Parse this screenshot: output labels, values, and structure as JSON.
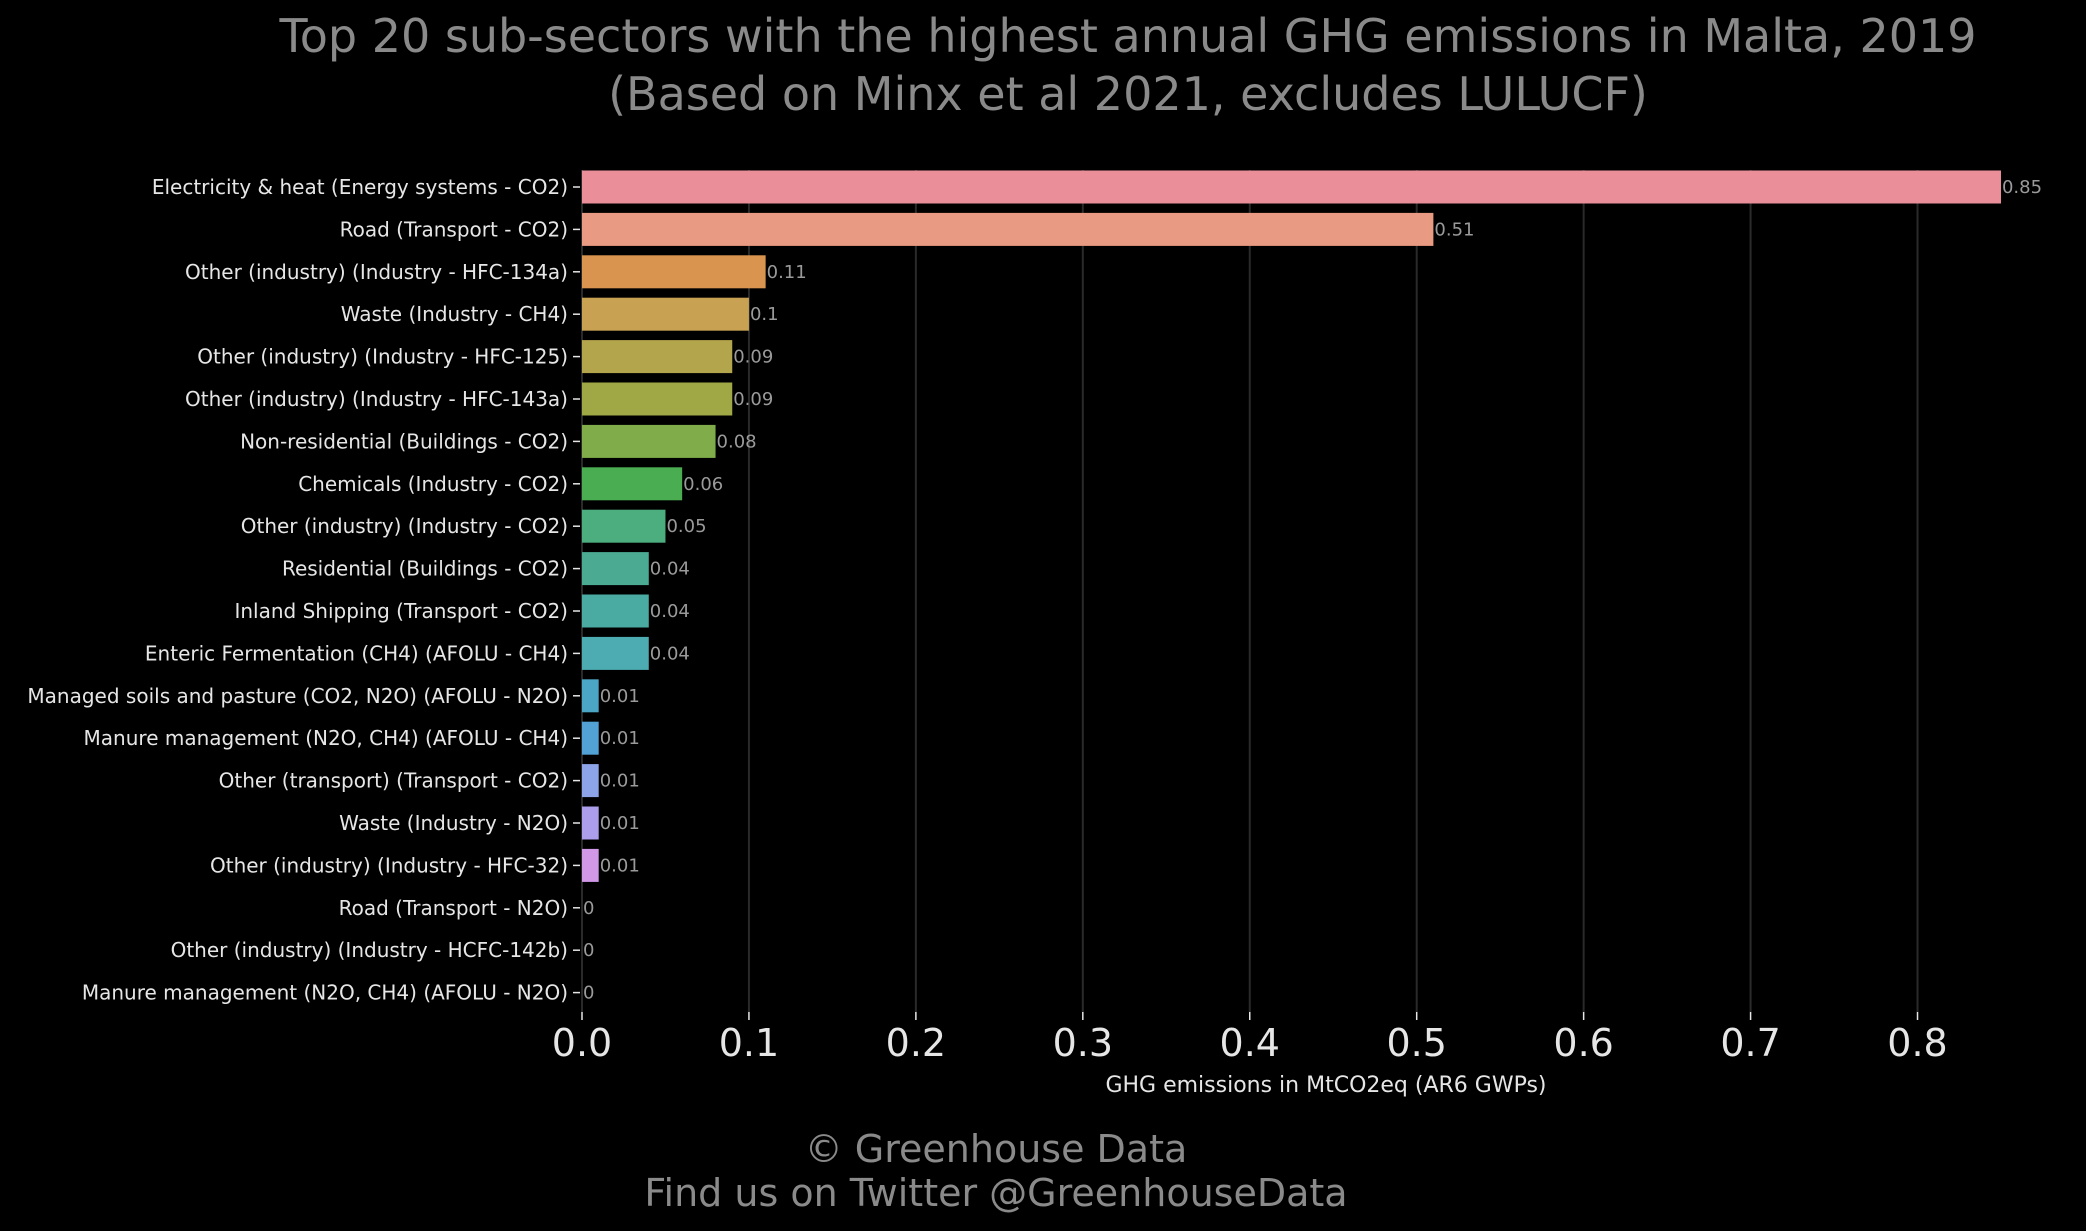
{
  "chart_data": {
    "type": "bar",
    "orientation": "horizontal",
    "title": "Top 20 sub-sectors with the highest annual GHG emissions in Malta, 2019",
    "subtitle": "(Based on Minx et al 2021, excludes LULUCF)",
    "xlabel": "GHG emissions in MtCO2eq (AR6 GWPs)",
    "ylabel": "",
    "xlim": [
      0,
      0.87
    ],
    "xticks": [
      0.0,
      0.1,
      0.2,
      0.3,
      0.4,
      0.5,
      0.6,
      0.7,
      0.8
    ],
    "xtick_labels": [
      "0.0",
      "0.1",
      "0.2",
      "0.3",
      "0.4",
      "0.5",
      "0.6",
      "0.7",
      "0.8"
    ],
    "grid": "vertical",
    "categories": [
      "Electricity & heat (Energy systems - CO2)",
      "Road (Transport - CO2)",
      "Other (industry) (Industry - HFC-134a)",
      "Waste (Industry - CH4)",
      "Other (industry) (Industry - HFC-125)",
      "Other (industry) (Industry - HFC-143a)",
      "Non-residential (Buildings - CO2)",
      "Chemicals (Industry - CO2)",
      "Other (industry) (Industry - CO2)",
      "Residential (Buildings - CO2)",
      "Inland Shipping (Transport - CO2)",
      "Enteric Fermentation (CH4) (AFOLU - CH4)",
      "Managed soils and pasture (CO2, N2O) (AFOLU - N2O)",
      "Manure management (N2O, CH4) (AFOLU - CH4)",
      "Other (transport) (Transport - CO2)",
      "Waste (Industry - N2O)",
      "Other (industry) (Industry - HFC-32)",
      "Road (Transport - N2O)",
      "Other (industry) (Industry - HCFC-142b)",
      "Manure management (N2O, CH4) (AFOLU - N2O)"
    ],
    "values": [
      0.85,
      0.51,
      0.11,
      0.1,
      0.09,
      0.09,
      0.08,
      0.06,
      0.05,
      0.04,
      0.04,
      0.04,
      0.01,
      0.01,
      0.01,
      0.01,
      0.01,
      0,
      0,
      0
    ],
    "value_labels": [
      "0.85",
      "0.51",
      "0.11",
      "0.1",
      "0.09",
      "0.09",
      "0.08",
      "0.06",
      "0.05",
      "0.04",
      "0.04",
      "0.04",
      "0.01",
      "0.01",
      "0.01",
      "0.01",
      "0.01",
      "0",
      "0",
      "0"
    ],
    "colors": [
      "#ea8f9a",
      "#e99a82",
      "#d99550",
      "#c8a152",
      "#b3a54c",
      "#9fa845",
      "#80ad4a",
      "#4aad52",
      "#4cad7e",
      "#4aab92",
      "#4aaba3",
      "#4dabb2",
      "#4aa6c4",
      "#52a2d6",
      "#8ea4e8",
      "#ac9eea",
      "#d298e8",
      "#e691d8",
      "#e98fc4",
      "#ea8fb0"
    ]
  },
  "credits": {
    "line1": "© Greenhouse Data",
    "line2": "Find us on Twitter @GreenhouseData"
  }
}
